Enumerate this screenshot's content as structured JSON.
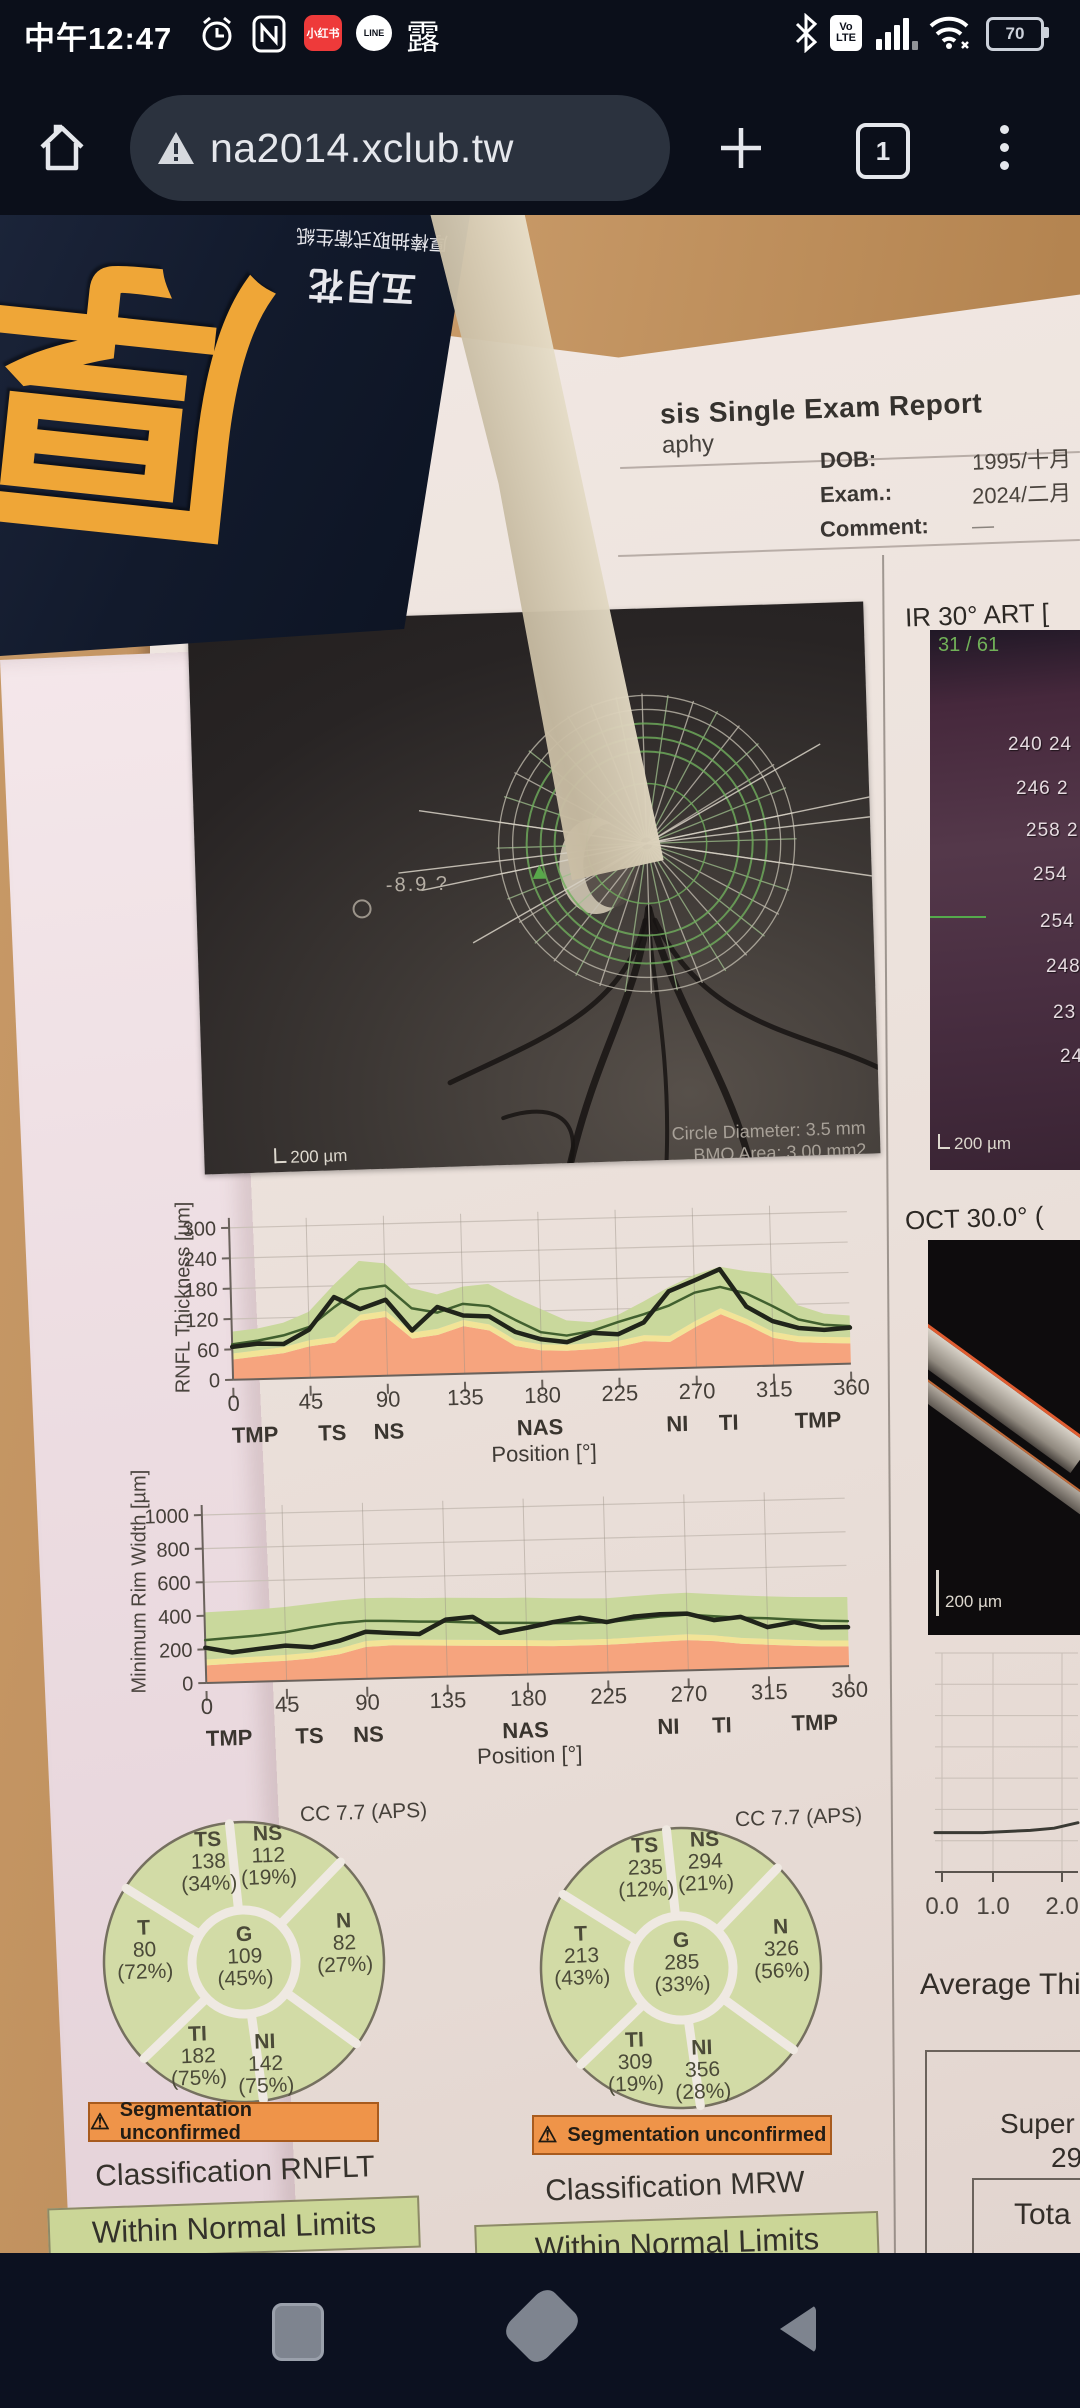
{
  "status_bar": {
    "time": "中午12:47",
    "xhs_label": "小红书",
    "line_label": "LINE",
    "lu_char": "露",
    "volte_line1": "Vo",
    "volte_line2": "LTE",
    "battery_level": "70"
  },
  "browser": {
    "url": "na2014.xclub.tw",
    "tab_count": "1"
  },
  "package": {
    "calligraphy_char": "厚",
    "product_text": "厚棒抽取式衛生紙",
    "brand_text": "五月花"
  },
  "report": {
    "title_partial": "sis Single Exam Report",
    "subtitle_partial": "aphy",
    "fields": [
      {
        "label": "DOB:",
        "value": "1995/十月"
      },
      {
        "label": "Exam.:",
        "value": "2024/二月"
      },
      {
        "label": "Comment:",
        "value": "—"
      }
    ],
    "fundus": {
      "annotation": "-8.9 ?",
      "scale": "200 µm",
      "circle_diameter": "Circle Diameter: 3.5 mm",
      "bmo_area": "BMO Area: 3.00 mm2"
    },
    "ir_panel": {
      "title": "IR 30° ART [",
      "frame_counter": "31 / 61",
      "numbers": [
        "240 24",
        "246 2",
        "258 2",
        "254",
        "254",
        "248",
        "23",
        "24"
      ],
      "scale": "200 µm"
    },
    "oct_panel": {
      "title": "OCT 30.0° (",
      "scale": "200 µm"
    },
    "average_heading_partial": "Average Thi",
    "side_table": {
      "row1_partial": "Super",
      "row1_value_partial": "29",
      "row2_partial": "Tota"
    },
    "warning_text": "Segmentation unconfirmed",
    "classifications": [
      {
        "heading": "Classification RNFLT",
        "result": "Within Normal Limits"
      },
      {
        "heading": "Classification MRW",
        "result": "Within Normal Limits"
      }
    ],
    "pies": [
      {
        "label": "CC 7.7 (APS)",
        "sectors": {
          "TS": {
            "v": "138",
            "p": "34%"
          },
          "NS": {
            "v": "112",
            "p": "19%"
          },
          "T": {
            "v": "80",
            "p": "72%"
          },
          "G": {
            "v": "109",
            "p": "45%"
          },
          "N": {
            "v": "82",
            "p": "27%"
          },
          "TI": {
            "v": "182",
            "p": "75%"
          },
          "NI": {
            "v": "142",
            "p": "75%"
          }
        }
      },
      {
        "label": "CC 7.7 (APS)",
        "sectors": {
          "TS": {
            "v": "235",
            "p": "12%"
          },
          "NS": {
            "v": "294",
            "p": "21%"
          },
          "T": {
            "v": "213",
            "p": "43%"
          },
          "G": {
            "v": "285",
            "p": "33%"
          },
          "N": {
            "v": "326",
            "p": "56%"
          },
          "TI": {
            "v": "309",
            "p": "19%"
          },
          "NI": {
            "v": "356",
            "p": "28%"
          }
        }
      }
    ]
  },
  "chart_data": [
    {
      "type": "line",
      "name": "rnfl-thickness-profile",
      "ylabel": "RNFL Thickness [µm]",
      "xlabel": "Position [°]",
      "ylim": [
        0,
        300
      ],
      "yticks": [
        0,
        60,
        120,
        180,
        240,
        300
      ],
      "xticks": [
        0,
        45,
        90,
        135,
        180,
        225,
        270,
        315,
        360
      ],
      "sector_labels": [
        {
          "label": "TMP",
          "deg": 12
        },
        {
          "label": "TS",
          "deg": 57
        },
        {
          "label": "NS",
          "deg": 90
        },
        {
          "label": "NAS",
          "deg": 178
        },
        {
          "label": "NI",
          "deg": 258
        },
        {
          "label": "TI",
          "deg": 288
        },
        {
          "label": "TMP",
          "deg": 340
        }
      ],
      "x_deg": [
        0,
        15,
        30,
        45,
        60,
        75,
        90,
        105,
        120,
        135,
        150,
        165,
        180,
        195,
        210,
        225,
        240,
        255,
        270,
        285,
        300,
        315,
        330,
        345,
        360
      ],
      "series": [
        {
          "name": "normative-mean",
          "color": "#41602f",
          "values": [
            70,
            76,
            85,
            100,
            138,
            172,
            178,
            132,
            122,
            138,
            132,
            104,
            78,
            70,
            78,
            94,
            108,
            124,
            148,
            158,
            144,
            118,
            90,
            78,
            74
          ]
        },
        {
          "name": "measured",
          "color": "#20241a",
          "values": [
            65,
            70,
            68,
            95,
            158,
            133,
            150,
            88,
            133,
            115,
            112,
            80,
            64,
            57,
            74,
            70,
            92,
            152,
            172,
            193,
            118,
            88,
            73,
            68,
            71
          ]
        }
      ],
      "bands": {
        "red_top": [
          40,
          45,
          50,
          62,
          68,
          110,
          116,
          72,
          78,
          94,
          84,
          52,
          42,
          40,
          42,
          45,
          55,
          52,
          80,
          104,
          82,
          55,
          45,
          42,
          40
        ],
        "yellow_top": [
          52,
          57,
          62,
          74,
          80,
          122,
          128,
          84,
          90,
          106,
          96,
          64,
          54,
          52,
          54,
          57,
          67,
          64,
          92,
          116,
          94,
          67,
          57,
          54,
          52
        ],
        "green_top": [
          95,
          100,
          110,
          130,
          182,
          228,
          222,
          172,
          158,
          172,
          176,
          148,
          124,
          100,
          95,
          108,
          133,
          160,
          183,
          198,
          188,
          182,
          118,
          100,
          95
        ],
        "colors": {
          "red": "#f6a47e",
          "yellow": "#f2e497",
          "green": "#c9d89c"
        }
      }
    },
    {
      "type": "line",
      "name": "minimum-rim-width-profile",
      "ylabel": "Minimum Rim Width [µm]",
      "xlabel": "Position [°]",
      "ylim": [
        0,
        1000
      ],
      "yticks": [
        0,
        200,
        400,
        600,
        800,
        1000
      ],
      "xticks": [
        0,
        45,
        90,
        135,
        180,
        225,
        270,
        315,
        360
      ],
      "sector_labels": [
        {
          "label": "TMP",
          "deg": 12
        },
        {
          "label": "TS",
          "deg": 57
        },
        {
          "label": "NS",
          "deg": 90
        },
        {
          "label": "NAS",
          "deg": 178
        },
        {
          "label": "NI",
          "deg": 258
        },
        {
          "label": "TI",
          "deg": 288
        },
        {
          "label": "TMP",
          "deg": 340
        }
      ],
      "x_deg": [
        0,
        15,
        30,
        45,
        60,
        75,
        90,
        105,
        120,
        135,
        150,
        165,
        180,
        195,
        210,
        225,
        240,
        255,
        270,
        285,
        300,
        315,
        330,
        345,
        360
      ],
      "series": [
        {
          "name": "normative-mean",
          "color": "#41602f",
          "values": [
            255,
            265,
            275,
            290,
            315,
            335,
            345,
            340,
            332,
            328,
            318,
            312,
            308,
            302,
            298,
            300,
            312,
            325,
            332,
            318,
            305,
            298,
            285,
            275,
            268
          ]
        },
        {
          "name": "measured",
          "color": "#20241a",
          "values": [
            210,
            178,
            195,
            210,
            196,
            230,
            280,
            268,
            258,
            340,
            352,
            252,
            278,
            308,
            330,
            300,
            328,
            338,
            338,
            295,
            310,
            245,
            270,
            235,
            232
          ]
        }
      ],
      "bands": {
        "red_top": [
          105,
          110,
          115,
          120,
          130,
          150,
          190,
          195,
          190,
          185,
          180,
          175,
          170,
          165,
          165,
          165,
          170,
          175,
          180,
          170,
          150,
          140,
          130,
          122,
          118
        ],
        "yellow_top": [
          140,
          145,
          150,
          155,
          165,
          185,
          225,
          230,
          225,
          220,
          215,
          210,
          205,
          200,
          200,
          200,
          205,
          210,
          215,
          205,
          185,
          175,
          165,
          157,
          153
        ],
        "green_top": [
          420,
          425,
          430,
          440,
          455,
          470,
          480,
          478,
          472,
          470,
          465,
          460,
          458,
          450,
          445,
          442,
          450,
          458,
          462,
          450,
          438,
          428,
          420,
          415,
          412
        ],
        "colors": {
          "red": "#f6a47e",
          "yellow": "#f2e497",
          "green": "#c9d89c"
        }
      }
    },
    {
      "type": "line",
      "name": "average-thickness-trend",
      "x_tick_labels": [
        "0.0",
        "1.0",
        "2.0"
      ],
      "values_norm": [
        0.18,
        0.18,
        0.18,
        0.185,
        0.19,
        0.2,
        0.225
      ],
      "grid": true
    }
  ]
}
